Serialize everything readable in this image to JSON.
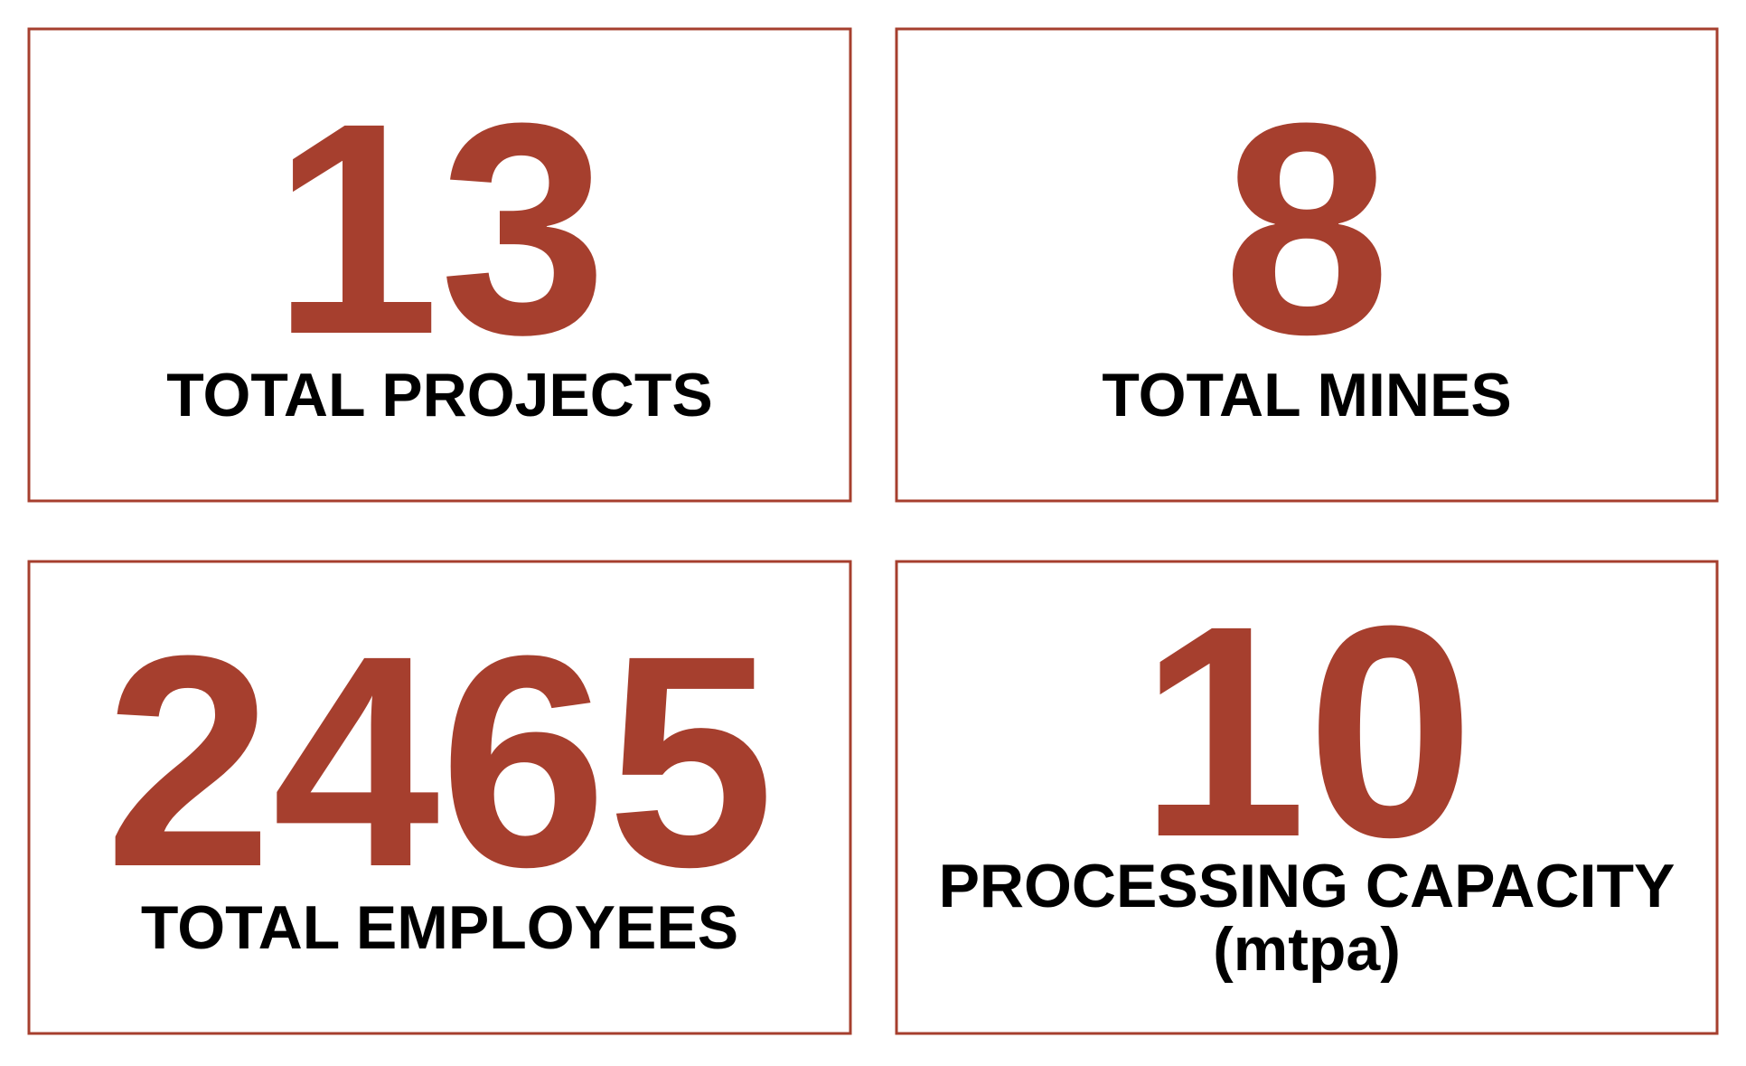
{
  "cards": [
    {
      "value": 13,
      "label": "TOTAL PROJECTS"
    },
    {
      "value": 8,
      "label": "TOTAL MINES"
    },
    {
      "value": 2465,
      "label": "TOTAL EMPLOYEES"
    },
    {
      "value": 10,
      "label": "PROCESSING CAPACITY",
      "sublabel": "(mtpa)"
    }
  ]
}
